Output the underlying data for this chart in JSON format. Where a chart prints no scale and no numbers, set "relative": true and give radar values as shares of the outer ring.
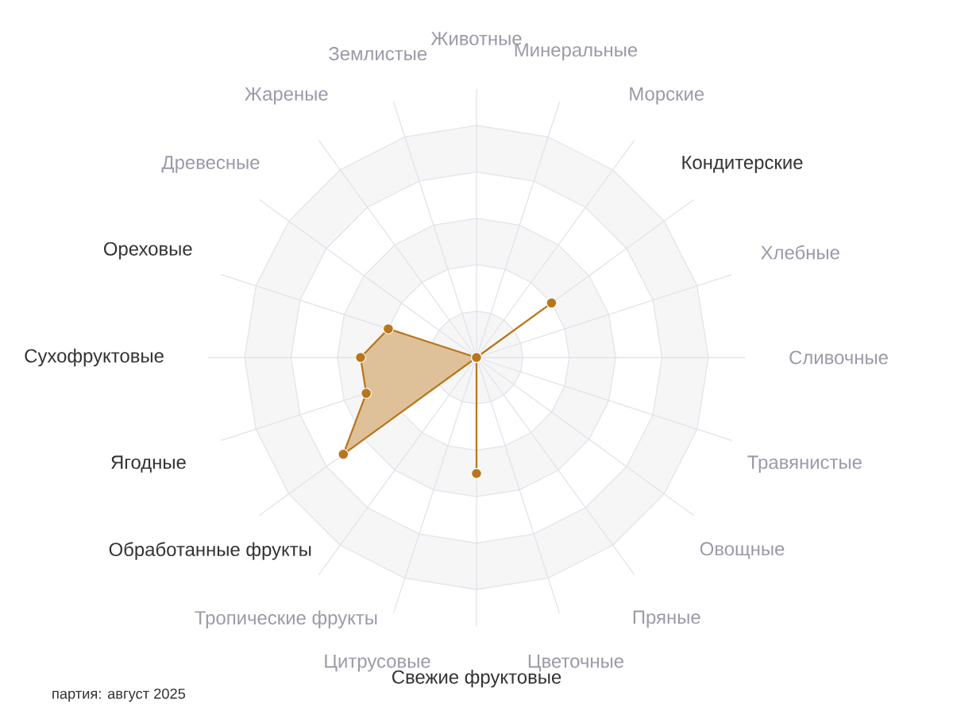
{
  "chart_data": {
    "type": "radar",
    "relative": true,
    "grid": true,
    "marker": "circle",
    "categories": [
      "Животные",
      "Минеральные",
      "Морские",
      "Кондитерские",
      "Хлебные",
      "Сливочные",
      "Травянистые",
      "Овощные",
      "Пряные",
      "Цветочные",
      "Свежие фруктовые",
      "Цитрусовые",
      "Тропические фрукты",
      "Обработанные фрукты",
      "Ягодные",
      "Сухофруктовые",
      "Ореховые",
      "Древесные",
      "Жареные",
      "Землистые"
    ],
    "series": [
      {
        "color": "#b8761c",
        "values": [
          0,
          0,
          0,
          0.4,
          0,
          0,
          0,
          0,
          0,
          0,
          0.5,
          0,
          0,
          0.71,
          0.5,
          0.5,
          0.4,
          0,
          0,
          0
        ]
      }
    ],
    "annotations": [
      "партия: август 2025"
    ]
  }
}
